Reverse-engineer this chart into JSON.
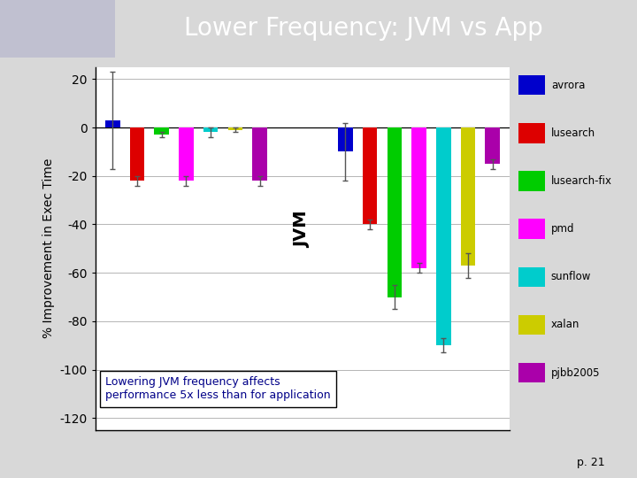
{
  "title": "Lower Frequency: JVM vs App",
  "ylabel": "% Improvement in Exec Time",
  "header_color": "#8888aa",
  "benchmarks": [
    "avrora",
    "lusearch",
    "lusearch-fix",
    "pmd",
    "sunflow",
    "xalan",
    "pjbb2005"
  ],
  "colors": [
    "#0000cc",
    "#dd0000",
    "#00cc00",
    "#ff00ff",
    "#00cccc",
    "#cccc00",
    "#aa00aa"
  ],
  "jvm_values": [
    3,
    -22,
    -3,
    -22,
    -2,
    -1,
    -22
  ],
  "app_values": [
    -10,
    -40,
    -70,
    -58,
    -90,
    -57,
    -15
  ],
  "jvm_errors": [
    20,
    2,
    1,
    2,
    2,
    1,
    2
  ],
  "app_errors": [
    12,
    2,
    5,
    2,
    3,
    5,
    2
  ],
  "ylim": [
    -125,
    25
  ],
  "yticks": [
    20,
    0,
    -20,
    -40,
    -60,
    -80,
    -100,
    -120
  ],
  "yticklabels": [
    "20",
    "0",
    "-20",
    "-40",
    "-60",
    "-80",
    "-100",
    "-120"
  ],
  "annotation_text": "Lowering JVM frequency affects\nperformance 5x less than for application",
  "jvm_label": "JVM",
  "page_num": "p. 21"
}
